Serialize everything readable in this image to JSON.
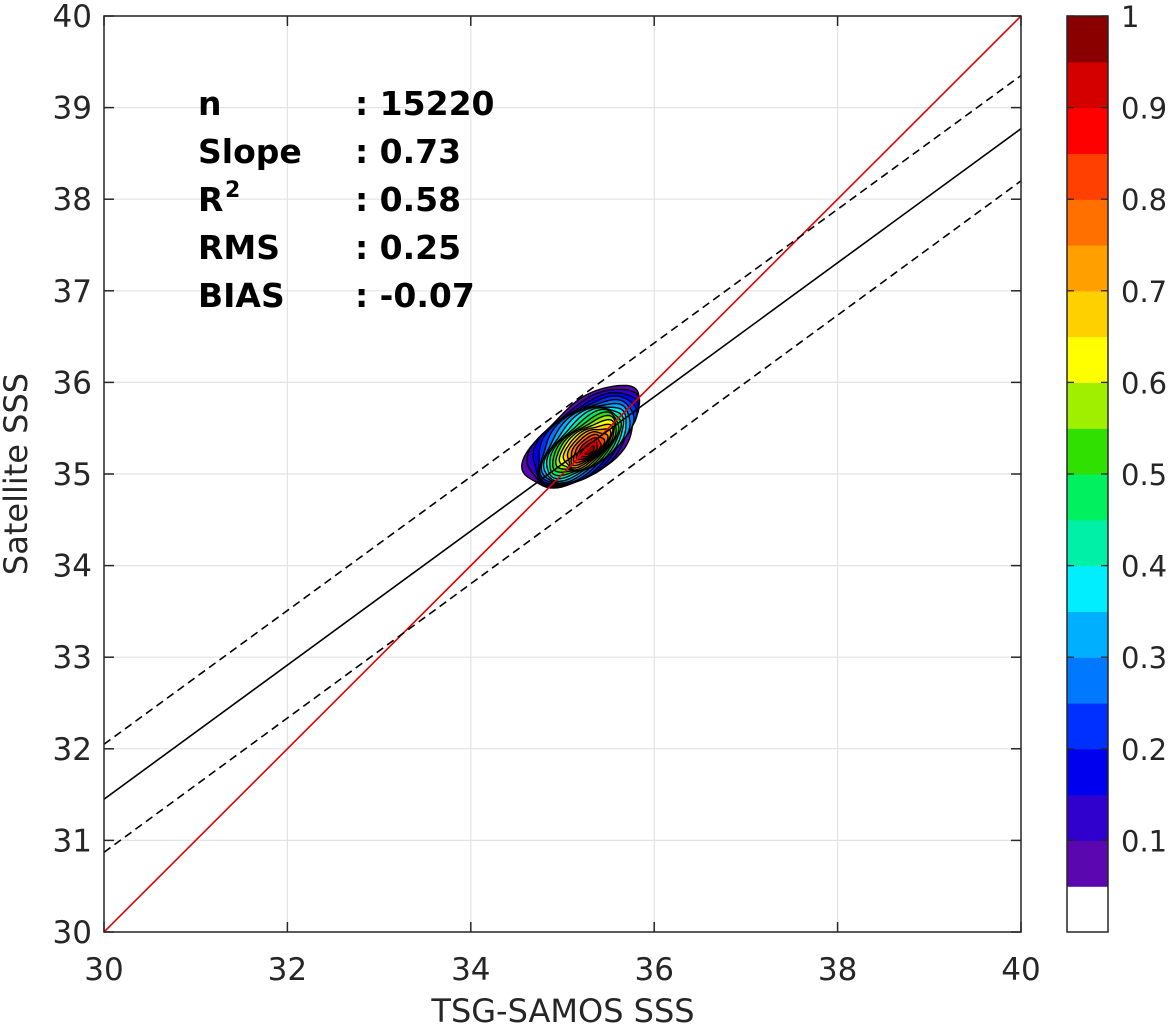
{
  "chart_data": {
    "type": "heatmap",
    "xlabel": "TSG-SAMOS SSS",
    "ylabel": "Satellite SSS",
    "xlim": [
      30,
      40
    ],
    "ylim": [
      30,
      40
    ],
    "xticks": [
      "30",
      "32",
      "34",
      "36",
      "38",
      "40"
    ],
    "yticks": [
      "30",
      "31",
      "32",
      "33",
      "34",
      "35",
      "36",
      "37",
      "38",
      "39",
      "40"
    ],
    "grid": true,
    "stats": [
      {
        "label": "n",
        "sup": "",
        "value": ": 15220"
      },
      {
        "label": "Slope",
        "sup": "",
        "value": ": 0.73"
      },
      {
        "label": "R",
        "sup": "2",
        "value": ": 0.58"
      },
      {
        "label": "RMS",
        "sup": "",
        "value": ": 0.25"
      },
      {
        "label": "BIAS",
        "sup": "",
        "value": ": -0.07"
      }
    ],
    "lines": [
      {
        "style": "solid",
        "color": "#e00000",
        "points": [
          [
            30,
            30
          ],
          [
            40,
            40
          ]
        ]
      },
      {
        "style": "solid",
        "color": "#000000",
        "points": [
          [
            30,
            31.45
          ],
          [
            40,
            38.77
          ]
        ]
      },
      {
        "style": "dashed",
        "color": "#000000",
        "points": [
          [
            30,
            32.05
          ],
          [
            40,
            39.35
          ]
        ]
      },
      {
        "style": "dashed",
        "color": "#000000",
        "points": [
          [
            30,
            30.87
          ],
          [
            40,
            38.2
          ]
        ]
      }
    ],
    "density": {
      "center": [
        35.15,
        35.25
      ],
      "peak": [
        35.3,
        35.25
      ],
      "extent": {
        "x": [
          34.6,
          35.85
        ],
        "y": [
          34.65,
          36.15
        ]
      }
    },
    "colorbar": {
      "ticks": [
        "0.1",
        "0.2",
        "0.3",
        "0.4",
        "0.5",
        "0.6",
        "0.7",
        "0.8",
        "0.9",
        "1"
      ],
      "levels": [
        0.05,
        0.1,
        0.15,
        0.2,
        0.25,
        0.3,
        0.35,
        0.4,
        0.45,
        0.5,
        0.55,
        0.6,
        0.65,
        0.7,
        0.75,
        0.8,
        0.85,
        0.9,
        0.95
      ],
      "colors": [
        "#ffffff",
        "#5a07b0",
        "#3000cc",
        "#0000ee",
        "#0030ff",
        "#0078ff",
        "#00b0ff",
        "#00eeff",
        "#00f0a8",
        "#00f060",
        "#30e000",
        "#a0ee00",
        "#ffff00",
        "#ffd000",
        "#ffa000",
        "#ff7000",
        "#ff4000",
        "#ff0000",
        "#d40000",
        "#8a0000"
      ]
    }
  }
}
